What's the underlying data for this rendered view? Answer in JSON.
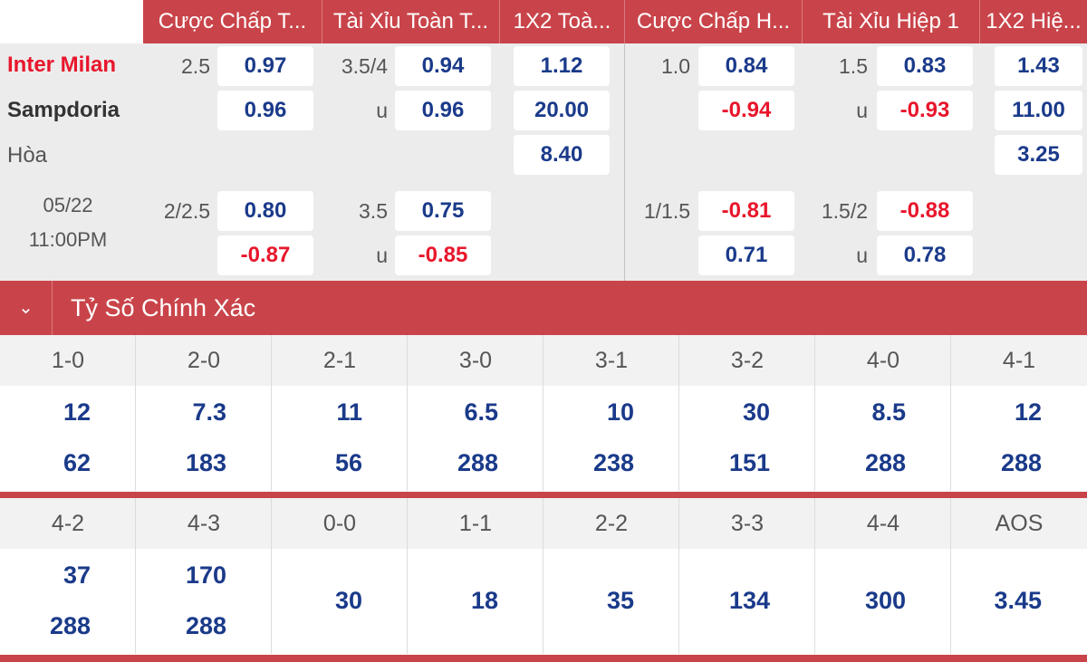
{
  "headers": [
    "Cược Chấp T...",
    "Tài Xỉu Toàn T...",
    "1X2 Toà...",
    "Cược Chấp H...",
    "Tài Xỉu Hiệp 1",
    "1X2 Hiệ..."
  ],
  "match": {
    "home": "Inter Milan",
    "away": "Sampdoria",
    "draw": "Hòa",
    "date": "05/22",
    "time": "11:00PM"
  },
  "row1": {
    "ft_hdp_line": "2.5",
    "ft_hdp_home": "0.97",
    "ft_hdp_away": "0.96",
    "ft_ou_line": "3.5/4",
    "ft_ou_over": "0.94",
    "ft_ou_u": "u",
    "ft_ou_under": "0.96",
    "ft_1x2_home": "1.12",
    "ft_1x2_away": "20.00",
    "ft_1x2_draw": "8.40",
    "h1_hdp_line": "1.0",
    "h1_hdp_home": "0.84",
    "h1_hdp_away": "-0.94",
    "h1_ou_line": "1.5",
    "h1_ou_over": "0.83",
    "h1_ou_u": "u",
    "h1_ou_under": "-0.93",
    "h1_1x2_home": "1.43",
    "h1_1x2_away": "11.00",
    "h1_1x2_draw": "3.25"
  },
  "row2": {
    "ft_hdp_line": "2/2.5",
    "ft_hdp_home": "0.80",
    "ft_hdp_away": "-0.87",
    "ft_ou_line": "3.5",
    "ft_ou_over": "0.75",
    "ft_ou_u": "u",
    "ft_ou_under": "-0.85",
    "h1_hdp_line": "1/1.5",
    "h1_hdp_home": "-0.81",
    "h1_hdp_away": "0.71",
    "h1_ou_line": "1.5/2",
    "h1_ou_over": "-0.88",
    "h1_ou_u": "u",
    "h1_ou_under": "0.78"
  },
  "correct_score": {
    "title": "Tỷ Số Chính Xác",
    "chevron": "⌄",
    "grid1": [
      {
        "score": "1-0",
        "a": "12",
        "b": "62"
      },
      {
        "score": "2-0",
        "a": "7.3",
        "b": "183"
      },
      {
        "score": "2-1",
        "a": "11",
        "b": "56"
      },
      {
        "score": "3-0",
        "a": "6.5",
        "b": "288"
      },
      {
        "score": "3-1",
        "a": "10",
        "b": "238"
      },
      {
        "score": "3-2",
        "a": "30",
        "b": "151"
      },
      {
        "score": "4-0",
        "a": "8.5",
        "b": "288"
      },
      {
        "score": "4-1",
        "a": "12",
        "b": "288"
      }
    ],
    "grid2": [
      {
        "score": "4-2",
        "a": "37",
        "b": "288"
      },
      {
        "score": "4-3",
        "a": "170",
        "b": "288"
      },
      {
        "score": "0-0",
        "single": "30"
      },
      {
        "score": "1-1",
        "single": "18"
      },
      {
        "score": "2-2",
        "single": "35"
      },
      {
        "score": "3-3",
        "single": "134"
      },
      {
        "score": "4-4",
        "single": "300"
      },
      {
        "score": "AOS",
        "single": "3.45"
      }
    ]
  },
  "colors": {
    "accent": "#c9444a",
    "odds_positive": "#1a3a8a",
    "odds_negative": "#e8162b",
    "home_team": "#e8162b"
  }
}
